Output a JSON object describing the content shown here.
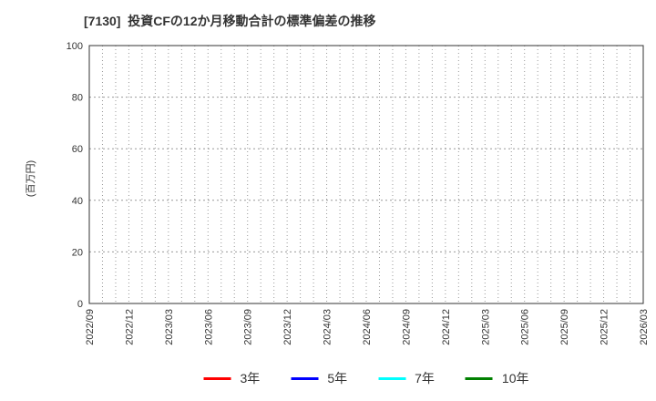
{
  "title": "[7130]  投資CFの12か月移動合計の標準偏差の推移",
  "chart_data": {
    "type": "line",
    "title": "[7130]  投資CFの12か月移動合計の標準偏差の推移",
    "xlabel": "",
    "ylabel": "(百万円)",
    "ylim": [
      0,
      100
    ],
    "yticks": [
      0,
      20,
      40,
      60,
      80,
      100
    ],
    "x_tick_labels": [
      "2022/09",
      "2022/12",
      "2023/03",
      "2023/06",
      "2023/09",
      "2023/12",
      "2024/03",
      "2024/06",
      "2024/09",
      "2024/12",
      "2025/03",
      "2025/06",
      "2025/09",
      "2025/12",
      "2026/03"
    ],
    "x_range": [
      "2022/09",
      "2026/03"
    ],
    "x_months_total": 42,
    "months_per_labeled_tick": 3,
    "grid": "on",
    "grid_style": "dotted",
    "grid_color": "#999999",
    "axis_color": "#333333",
    "tick_label_color": "#333333",
    "legend_position": "bottom-center",
    "series": [
      {
        "name": "3年",
        "color": "#ff0000",
        "values": []
      },
      {
        "name": "5年",
        "color": "#0000ff",
        "values": []
      },
      {
        "name": "7年",
        "color": "#00ffff",
        "values": []
      },
      {
        "name": "10年",
        "color": "#008000",
        "values": []
      }
    ],
    "no_data_plotted": true
  }
}
